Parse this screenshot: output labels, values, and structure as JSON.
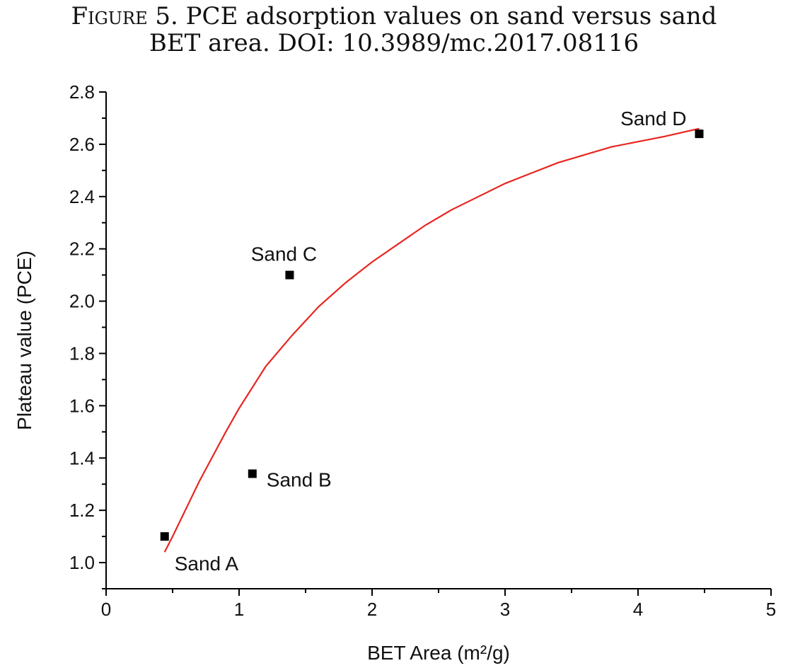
{
  "caption": {
    "label": "Figure 5.",
    "line1_text": "PCE adsorption values on sand versus sand",
    "line2": "BET area. DOI: 10.3989/mc.2017.08116"
  },
  "chart_data": {
    "type": "scatter",
    "xlabel": "BET Area (m²/g)",
    "ylabel": "Plateau value (PCE)",
    "xlim": [
      0,
      5
    ],
    "ylim": [
      0.9,
      2.8
    ],
    "x_ticks": [
      "0",
      "1",
      "2",
      "3",
      "4",
      "5"
    ],
    "y_ticks": [
      "1.0",
      "1.2",
      "1.4",
      "1.6",
      "1.8",
      "2.0",
      "2.2",
      "2.4",
      "2.6",
      "2.8"
    ],
    "grid": false,
    "points": [
      {
        "label": "Sand A",
        "x": 0.44,
        "y": 1.1
      },
      {
        "label": "Sand B",
        "x": 1.1,
        "y": 1.34
      },
      {
        "label": "Sand C",
        "x": 1.38,
        "y": 2.1
      },
      {
        "label": "Sand D",
        "x": 4.46,
        "y": 2.64
      }
    ],
    "fit_curve": {
      "color": "#e8251f",
      "x": [
        0.44,
        0.5,
        0.7,
        0.9,
        1.0,
        1.2,
        1.4,
        1.6,
        1.8,
        2.0,
        2.2,
        2.4,
        2.6,
        2.8,
        3.0,
        3.2,
        3.4,
        3.6,
        3.8,
        4.0,
        4.2,
        4.46
      ],
      "y": [
        1.04,
        1.1,
        1.31,
        1.5,
        1.59,
        1.75,
        1.87,
        1.98,
        2.07,
        2.15,
        2.22,
        2.29,
        2.35,
        2.4,
        2.45,
        2.49,
        2.53,
        2.56,
        2.59,
        2.61,
        2.63,
        2.66
      ]
    },
    "marker_color": "#000000"
  }
}
